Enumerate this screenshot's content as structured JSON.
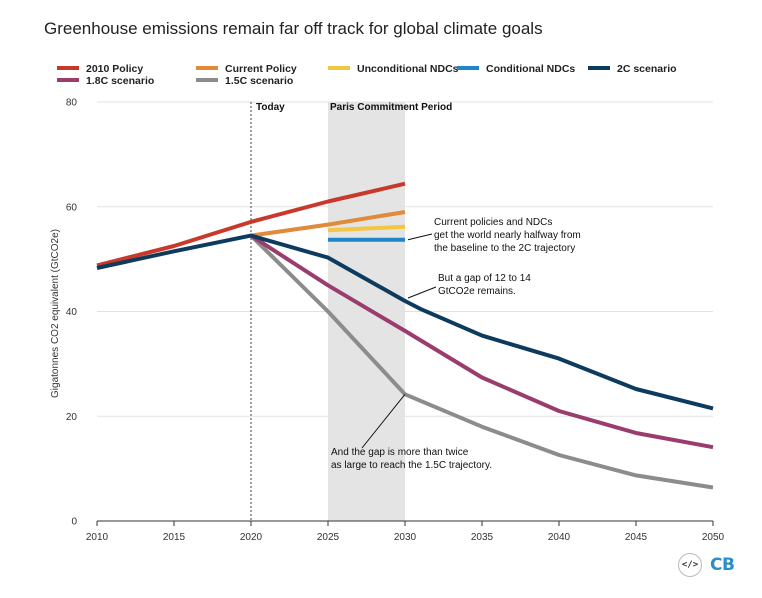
{
  "title": "Greenhouse emissions remain far off track for global climate goals",
  "chart_data": {
    "type": "line",
    "ylabel": "Gigatonnes CO2 equivalent (GtCO2e)",
    "ylim": [
      0,
      80
    ],
    "xlim": [
      2010,
      2050
    ],
    "yticks": [
      0,
      20,
      40,
      60,
      80
    ],
    "xticks": [
      2010,
      2015,
      2020,
      2025,
      2030,
      2035,
      2040,
      2045,
      2050
    ],
    "grid": "horizontal",
    "legend_position": "top",
    "series": [
      {
        "name": "2010 Policy",
        "color": "#c8392b",
        "x": [
          2010,
          2015,
          2020,
          2025,
          2030
        ],
        "y": [
          48.8,
          52.5,
          57.1,
          61.0,
          64.4
        ]
      },
      {
        "name": "Current Policy",
        "color": "#e08a3a",
        "x": [
          2020,
          2025,
          2030
        ],
        "y": [
          54.5,
          56.6,
          59.0
        ]
      },
      {
        "name": "Unconditional NDCs",
        "color": "#f4c542",
        "x": [
          2025,
          2030
        ],
        "y": [
          55.5,
          56.2
        ]
      },
      {
        "name": "Conditional NDCs",
        "color": "#1f86c8",
        "x": [
          2025,
          2030
        ],
        "y": [
          53.7,
          53.7
        ]
      },
      {
        "name": "2C scenario",
        "color": "#0d3b5e",
        "x": [
          2010,
          2015,
          2020,
          2025,
          2030,
          2031,
          2035,
          2040,
          2045,
          2050
        ],
        "y": [
          48.3,
          51.5,
          54.5,
          50.3,
          42.0,
          40.5,
          35.4,
          31.0,
          25.2,
          21.5
        ]
      },
      {
        "name": "1.8C scenario",
        "color": "#9a3c6e",
        "x": [
          2020,
          2025,
          2030,
          2035,
          2040,
          2045,
          2050
        ],
        "y": [
          54.5,
          45.0,
          36.3,
          27.4,
          21.0,
          16.8,
          14.1
        ]
      },
      {
        "name": "1.5C scenario",
        "color": "#8c8c8c",
        "x": [
          2020,
          2025,
          2030,
          2035,
          2040,
          2045,
          2050
        ],
        "y": [
          54.5,
          40.0,
          24.2,
          18.0,
          12.6,
          8.7,
          6.4
        ]
      }
    ],
    "markers": [
      {
        "label": "Today",
        "x": 2020
      },
      {
        "label": "Paris Commitment Period",
        "x_start": 2025,
        "x_end": 2030
      }
    ],
    "annotations": [
      {
        "lines": [
          "Current policies and NDCs",
          "get the world nearly halfway from",
          "the baseline to the 2C trajectory"
        ],
        "x": 2030,
        "y": 53.7
      },
      {
        "lines": [
          "But a gap of 12 to 14",
          "GtCO2e remains."
        ],
        "x": 2030,
        "y": 42.0
      },
      {
        "lines": [
          "And the gap is more than twice",
          "as large to reach the 1.5C trajectory."
        ],
        "x": 2030,
        "y": 24.2
      }
    ]
  },
  "footer": {
    "embed_icon": "</>",
    "logo_text": "CB"
  }
}
